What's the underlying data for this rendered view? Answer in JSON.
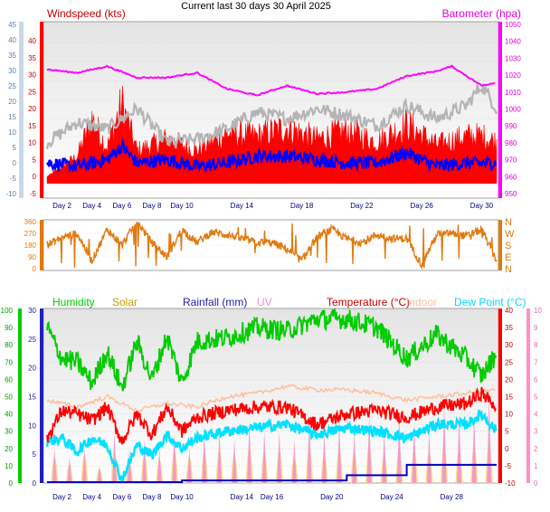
{
  "page_title": "Current last 30 days 30 April 2025",
  "colors": {
    "wind_label": "#c00000",
    "baro_label": "#e000e0",
    "gust": "#ff0000",
    "avg_wind": "#0000ff",
    "baro": "#ff00ff",
    "wind_grey": "#b4b4b4",
    "dir": "#e07a10",
    "humidity": "#00cc00",
    "solar": "#ffd98a",
    "rain": "#0000c0",
    "uv": "#f090c8",
    "temp": "#ff0000",
    "indoor": "#ffc0a0",
    "dew": "#00e0ff"
  },
  "chart_data": [
    {
      "type": "line",
      "id": "wind-baro",
      "title": "Current last 30 days 30 April 2025",
      "ylabel": "Windspeed (kts)",
      "ylabel_right": "Barometer (hpa)",
      "xticks": [
        "Day 2",
        "Day 4",
        "Day 6",
        "Day 8",
        "Day 10",
        "Day 14",
        "Day 18",
        "Day 22",
        "Day 26",
        "Day 30"
      ],
      "y_left_outer_ticks": [
        "-10",
        "-5",
        "0",
        "5",
        "10",
        "15",
        "20",
        "25",
        "30",
        "35",
        "40",
        "45"
      ],
      "y_left_inner_ticks": [
        "-5",
        "0",
        "5",
        "10",
        "15",
        "20",
        "25",
        "30",
        "35",
        "40"
      ],
      "y_right_ticks": [
        "950",
        "960",
        "970",
        "980",
        "990",
        "1000",
        "1010",
        "1020",
        "1030",
        "1040",
        "1050"
      ],
      "ylim_left": [
        -5,
        40
      ],
      "ylim_right": [
        945,
        1050
      ],
      "grid": true,
      "series": [
        {
          "name": "Barometer (hpa)",
          "axis": "right",
          "x_days": [
            0,
            2,
            4,
            6,
            8,
            10,
            12,
            14,
            16,
            18,
            20,
            22,
            24,
            26,
            27,
            28,
            29,
            30
          ],
          "values": [
            1022,
            1020,
            1024,
            1017,
            1017,
            1020,
            1010,
            1006,
            1012,
            1007,
            1008,
            1010,
            1018,
            1021,
            1024,
            1018,
            1012,
            1014
          ]
        },
        {
          "name": "Windspeed (kts)",
          "axis": "left",
          "x_days": [
            0,
            2,
            3,
            4,
            5,
            6,
            8,
            10,
            12,
            14,
            16,
            18,
            20,
            22,
            24,
            26,
            28,
            29,
            30
          ],
          "values": [
            0,
            7,
            20,
            10,
            25,
            9,
            13,
            9,
            15,
            14,
            17,
            13,
            16,
            12,
            18,
            11,
            14,
            14,
            12
          ]
        },
        {
          "name": "Average wind",
          "axis": "left",
          "x_days": [
            0,
            2,
            4,
            5,
            6,
            8,
            10,
            12,
            14,
            16,
            18,
            20,
            22,
            24,
            26,
            28,
            30
          ],
          "values": [
            4,
            3,
            5,
            9,
            4,
            5,
            3,
            4,
            6,
            6,
            5,
            4,
            4,
            7,
            3,
            4,
            4
          ]
        },
        {
          "name": "Wind (grey)",
          "axis": "left",
          "x_days": [
            0,
            2,
            4,
            6,
            8,
            10,
            12,
            14,
            16,
            18,
            20,
            22,
            24,
            26,
            28,
            29,
            30
          ],
          "values": [
            10,
            16,
            14,
            20,
            10,
            11,
            14,
            19,
            17,
            20,
            18,
            15,
            21,
            17,
            21,
            27,
            20
          ]
        }
      ]
    },
    {
      "type": "line",
      "id": "wind-direction",
      "y_left_ticks": [
        "0",
        "90",
        "180",
        "270",
        "360"
      ],
      "y_right_ticks": [
        "N",
        "E",
        "S",
        "W",
        "N"
      ],
      "ylim": [
        0,
        360
      ],
      "xticks": [],
      "series": [
        {
          "name": "Wind direction",
          "x_days": [
            0,
            1,
            2,
            3,
            4,
            5,
            6,
            7,
            8,
            9,
            10,
            11,
            12,
            13,
            14,
            15,
            16,
            17,
            18,
            19,
            20,
            21,
            22,
            23,
            24,
            25,
            26,
            27,
            28,
            29,
            30
          ],
          "values": [
            180,
            240,
            270,
            60,
            300,
            180,
            360,
            200,
            90,
            300,
            200,
            280,
            260,
            230,
            200,
            200,
            150,
            60,
            240,
            300,
            230,
            200,
            260,
            230,
            230,
            30,
            260,
            270,
            250,
            300,
            60
          ]
        }
      ]
    },
    {
      "type": "line",
      "id": "climate",
      "legend": [
        "Humidity",
        "Solar",
        "Rainfall (mm)",
        "UV",
        "Temperature (°C)",
        "Indoor",
        "Dew Point (°C)"
      ],
      "xticks": [
        "Day 2",
        "Day 4",
        "Day 6",
        "Day 8",
        "Day 10",
        "Day 14",
        "Day 16",
        "Day 20",
        "Day 24",
        "Day 28"
      ],
      "y_humidity_ticks": [
        "0",
        "10",
        "20",
        "30",
        "40",
        "50",
        "60",
        "70",
        "80",
        "90",
        "100"
      ],
      "y_rain_ticks": [
        "0",
        "5",
        "10",
        "15",
        "20",
        "25",
        "30"
      ],
      "y_temp_ticks": [
        "-10",
        "-5",
        "0",
        "5",
        "10",
        "15",
        "20",
        "25",
        "30",
        "35",
        "40"
      ],
      "y_uv_ticks": [
        "0",
        "1",
        "2",
        "3",
        "4",
        "5",
        "6",
        "7",
        "8",
        "9",
        "10"
      ],
      "ylim_temp": [
        -10,
        40
      ],
      "ylim_humidity": [
        0,
        100
      ],
      "grid": true,
      "series": [
        {
          "name": "Humidity",
          "axis": "humidity",
          "x_days": [
            0,
            1,
            2,
            3,
            4,
            5,
            6,
            7,
            8,
            9,
            10,
            12,
            14,
            16,
            18,
            20,
            22,
            24,
            26,
            28,
            29,
            30
          ],
          "values": [
            90,
            72,
            70,
            58,
            76,
            55,
            82,
            60,
            85,
            58,
            82,
            84,
            90,
            88,
            95,
            95,
            90,
            72,
            86,
            72,
            62,
            75
          ]
        },
        {
          "name": "Temperature (°C)",
          "axis": "temp",
          "x_days": [
            0,
            1,
            2,
            3,
            4,
            5,
            6,
            7,
            8,
            9,
            10,
            12,
            14,
            16,
            18,
            20,
            22,
            24,
            26,
            28,
            29,
            30
          ],
          "values": [
            3,
            11,
            10,
            8,
            12,
            2,
            10,
            4,
            12,
            5,
            9,
            11,
            12,
            12,
            7,
            10,
            11,
            9,
            12,
            13,
            16,
            12
          ]
        },
        {
          "name": "Dew Point (°C)",
          "axis": "temp",
          "x_days": [
            0,
            1,
            2,
            3,
            4,
            5,
            6,
            7,
            8,
            9,
            10,
            12,
            14,
            16,
            18,
            20,
            22,
            24,
            26,
            28,
            29,
            30
          ],
          "values": [
            2,
            3,
            -1,
            3,
            1,
            -9,
            1,
            -2,
            4,
            0,
            3,
            5,
            6,
            7,
            4,
            6,
            5,
            3,
            7,
            7,
            10,
            5
          ]
        },
        {
          "name": "Indoor",
          "axis": "temp",
          "x_days": [
            0,
            2,
            4,
            6,
            8,
            10,
            12,
            14,
            16,
            18,
            20,
            22,
            24,
            26,
            28,
            30
          ],
          "values": [
            14,
            12,
            15,
            11,
            13,
            12,
            15,
            16,
            18,
            17,
            17,
            16,
            14,
            15,
            16,
            17
          ]
        },
        {
          "name": "Rainfall (mm)",
          "axis": "rain",
          "x_days": [
            0,
            8,
            9,
            10,
            19,
            20,
            23,
            24,
            25,
            30
          ],
          "values": [
            0,
            0,
            0.3,
            0.3,
            0.3,
            1.2,
            1.2,
            3,
            3,
            3
          ]
        },
        {
          "name": "Solar",
          "type": "daily-peaks",
          "peak_levels": [
            0.45,
            0.3,
            0.5,
            0.2,
            0.55,
            0.35,
            0.5,
            0.4,
            0.6,
            0.45,
            0.55,
            0.6,
            0.5,
            0.65,
            0.55,
            0.6,
            0.45,
            0.65,
            0.5,
            0.6,
            0.55,
            0.7,
            0.5,
            0.65,
            0.6,
            0.55,
            0.7,
            0.6,
            0.65,
            0.75
          ]
        },
        {
          "name": "UV",
          "type": "daily-peaks",
          "peak_levels": [
            2,
            1.5,
            2,
            1,
            3,
            2,
            2.5,
            2,
            3,
            2,
            3,
            3,
            2.5,
            3.5,
            3,
            3,
            2.5,
            4,
            3,
            3.5,
            3,
            4,
            3,
            4,
            3.5,
            3,
            4.5,
            4,
            4,
            5
          ]
        }
      ]
    }
  ]
}
